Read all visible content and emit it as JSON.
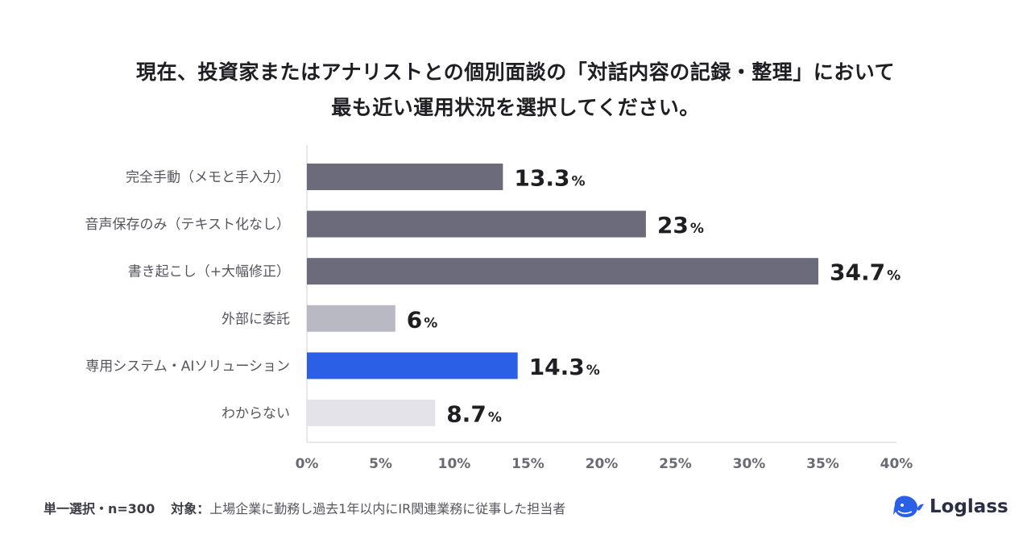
{
  "title": {
    "line1": "現在、投資家またはアナリストとの個別面談の「対話内容の記録・整理」において",
    "line2": "最も近い運用状況を選択してください。"
  },
  "chart_data": {
    "type": "bar",
    "orientation": "horizontal",
    "title": "現在、投資家またはアナリストとの個別面談の「対話内容の記録・整理」において最も近い運用状況を選択してください。",
    "categories": [
      "完全手動（メモと手入力）",
      "音声保存のみ（テキスト化なし）",
      "書き起こし（+大幅修正）",
      "外部に委託",
      "専用システム・AIソリューション",
      "わからない"
    ],
    "values": [
      13.3,
      23,
      34.7,
      6,
      14.3,
      8.7
    ],
    "value_labels": [
      "13.3",
      "23",
      "34.7",
      "6",
      "14.3",
      "8.7"
    ],
    "value_unit": "%",
    "colors": [
      "#6b6b7b",
      "#6b6b7b",
      "#6b6b7b",
      "#b9b9c3",
      "#2b5fe6",
      "#e3e3e9"
    ],
    "xlim": [
      0,
      40
    ],
    "xticks": [
      0,
      5,
      10,
      15,
      20,
      25,
      30,
      35,
      40
    ],
    "xtick_labels": [
      "0%",
      "5%",
      "10%",
      "15%",
      "20%",
      "25%",
      "30%",
      "35%",
      "40%"
    ],
    "xlabel": "",
    "ylabel": "",
    "grid": false
  },
  "footer": {
    "selection": "単一選択・n=300",
    "target_label": "対象：",
    "target_text": "上場企業に勤務し過去1年以内にIR関連業務に従事した担当者"
  },
  "logo": {
    "text": "Loglass",
    "color": "#2a2f45",
    "icon": "whale-logo-icon",
    "icon_color": "#2b5fe6"
  }
}
